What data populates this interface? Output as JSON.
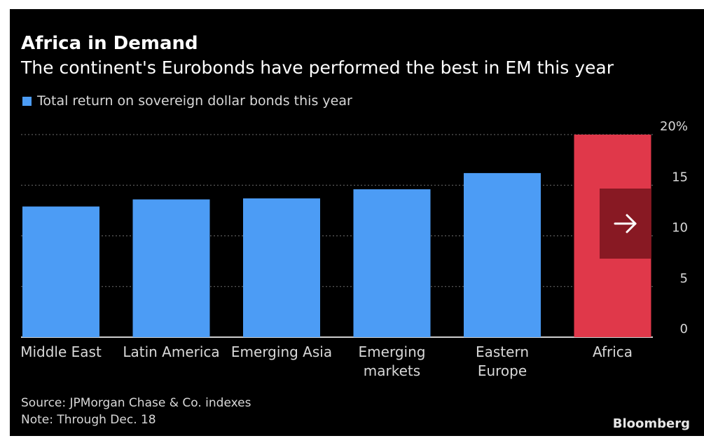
{
  "colors": {
    "background": "#000000",
    "series": "#4c9cf5",
    "highlight": "#e0384a",
    "text": "#d8d8d8",
    "grid": "#6e6e6e"
  },
  "chart_data": {
    "type": "bar",
    "title": "Africa in Demand",
    "subtitle": "The continent's Eurobonds have performed the best in EM this year",
    "legend": "Total return on sovereign dollar bonds this year",
    "categories": [
      [
        "Middle East"
      ],
      [
        "Latin America"
      ],
      [
        "Emerging Asia"
      ],
      [
        "Emerging",
        "markets"
      ],
      [
        "Eastern",
        "Europe"
      ],
      [
        "Africa"
      ]
    ],
    "values": [
      12.9,
      13.6,
      13.7,
      14.6,
      16.2,
      20.0
    ],
    "highlight_index": 5,
    "ylim": [
      0,
      20
    ],
    "yticks": [
      0,
      5,
      10,
      15,
      20
    ],
    "ytick_labels": [
      "0",
      "5",
      "10",
      "15",
      "20%"
    ],
    "y_axis_side": "right",
    "grid": true,
    "xlabel": "",
    "ylabel": ""
  },
  "footer": {
    "source": "Source: JPMorgan Chase & Co. indexes",
    "note": "Note: Through Dec. 18",
    "brand": "Bloomberg"
  },
  "nav": {
    "next_icon": "arrow-right-icon"
  }
}
